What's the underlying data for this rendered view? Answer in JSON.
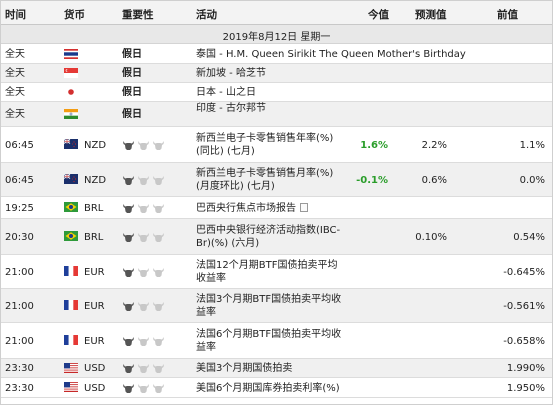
{
  "header": {
    "time": "时间",
    "currency": "货币",
    "importance": "重要性",
    "event": "活动",
    "actual": "今值",
    "forecast": "预测值",
    "previous": "前值"
  },
  "date_label": "2019年8月12日 星期一",
  "holiday_label": "假日",
  "rows": [
    {
      "time": "全天",
      "flag": "thailand-flag",
      "currency": "",
      "holiday": true,
      "event": "泰国 - H.M. Queen Sirikit The Queen Mother's Birthday",
      "actual": "",
      "forecast": "",
      "previous": ""
    },
    {
      "time": "全天",
      "flag": "singapore-flag",
      "currency": "",
      "holiday": true,
      "event": "新加坡 - 哈芝节",
      "actual": "",
      "forecast": "",
      "previous": ""
    },
    {
      "time": "全天",
      "flag": "japan-flag",
      "currency": "",
      "holiday": true,
      "event": "日本 - 山之日",
      "actual": "",
      "forecast": "",
      "previous": ""
    },
    {
      "time": "全天",
      "flag": "india-flag",
      "currency": "",
      "holiday": true,
      "event": "印度 - 古尔邦节",
      "actual": "",
      "forecast": "",
      "previous": ""
    },
    {
      "time": "06:45",
      "flag": "new-zealand-flag",
      "currency": "NZD",
      "importance": 1,
      "event": "新西兰电子卡零售销售年率(%) (同比) (七月)",
      "actual": "1.6%",
      "forecast": "2.2%",
      "previous": "1.1%"
    },
    {
      "time": "06:45",
      "flag": "new-zealand-flag",
      "currency": "NZD",
      "importance": 1,
      "event": "新西兰电子卡零售销售月率(%) (月度环比) (七月)",
      "actual": "-0.1%",
      "forecast": "0.6%",
      "previous": "0.0%"
    },
    {
      "time": "19:25",
      "flag": "brazil-flag",
      "currency": "BRL",
      "importance": 1,
      "event": "巴西央行焦点市场报告",
      "actual": "",
      "forecast": "",
      "previous": "",
      "doc": true
    },
    {
      "time": "20:30",
      "flag": "brazil-flag",
      "currency": "BRL",
      "importance": 1,
      "event": "巴西中央银行经济活动指数(IBC-Br)(%) (六月)",
      "actual": "",
      "forecast": "0.10%",
      "previous": "0.54%"
    },
    {
      "time": "21:00",
      "flag": "france-flag",
      "currency": "EUR",
      "importance": 1,
      "event": "法国12个月期BTF国债拍卖平均收益率",
      "actual": "",
      "forecast": "",
      "previous": "-0.645%"
    },
    {
      "time": "21:00",
      "flag": "france-flag",
      "currency": "EUR",
      "importance": 1,
      "event": "法国3个月期BTF国债拍卖平均收益率",
      "actual": "",
      "forecast": "",
      "previous": "-0.561%"
    },
    {
      "time": "21:00",
      "flag": "france-flag",
      "currency": "EUR",
      "importance": 1,
      "event": "法国6个月期BTF国债拍卖平均收益率",
      "actual": "",
      "forecast": "",
      "previous": "-0.658%"
    },
    {
      "time": "23:30",
      "flag": "usa-flag",
      "currency": "USD",
      "importance": 1,
      "event": "美国3个月期国债拍卖",
      "actual": "",
      "forecast": "",
      "previous": "1.990%"
    },
    {
      "time": "23:30",
      "flag": "usa-flag",
      "currency": "USD",
      "importance": 1,
      "event": "美国6个月期国库券拍卖利率(%)",
      "actual": "",
      "forecast": "",
      "previous": "1.950%"
    }
  ],
  "colors": {
    "actual_positive": "#2a9d2a",
    "header_bg": "#f3f3f3",
    "alt_row": "#f0f0f0"
  }
}
